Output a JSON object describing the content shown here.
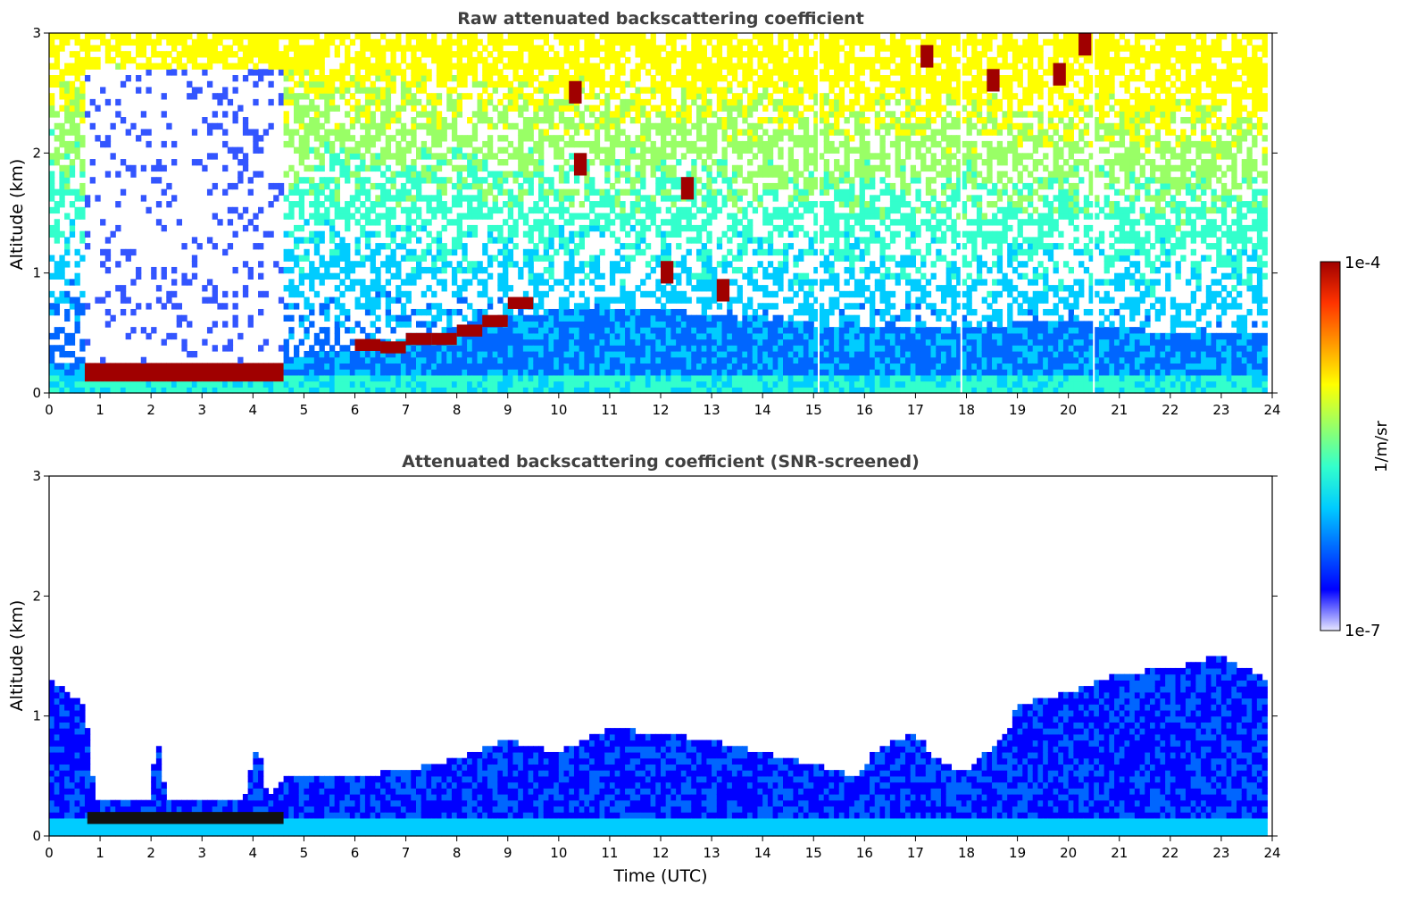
{
  "chart_data": [
    {
      "type": "heatmap",
      "title": "Raw attenuated backscattering coefficient",
      "xlabel": "",
      "ylabel": "Altitude (km)",
      "xlim": [
        0,
        24
      ],
      "ylim": [
        0,
        3
      ],
      "x_ticks": [
        "0",
        "1",
        "2",
        "3",
        "4",
        "5",
        "6",
        "7",
        "8",
        "9",
        "10",
        "11",
        "12",
        "13",
        "14",
        "15",
        "16",
        "17",
        "18",
        "19",
        "20",
        "21",
        "22",
        "23",
        "24"
      ],
      "y_ticks": [
        "0",
        "1",
        "2",
        "3"
      ],
      "screened": false,
      "features": {
        "aerosol_layer_top_km": [
          [
            0,
            0.25
          ],
          [
            4.5,
            0.3
          ],
          [
            6,
            0.35
          ],
          [
            8,
            0.55
          ],
          [
            10,
            0.7
          ],
          [
            12,
            0.7
          ],
          [
            14,
            0.6
          ],
          [
            16,
            0.55
          ],
          [
            18,
            0.55
          ],
          [
            20,
            0.6
          ],
          [
            22,
            0.5
          ],
          [
            24,
            0.5
          ]
        ],
        "fog_layer": {
          "x_range": [
            0.75,
            4.6
          ],
          "bottom_km": 0.08,
          "top_km": 0.25
        },
        "low_clouds": [
          [
            6.0,
            0.4
          ],
          [
            6.5,
            0.38
          ],
          [
            7.0,
            0.45
          ],
          [
            7.5,
            0.45
          ],
          [
            8.0,
            0.52
          ],
          [
            8.5,
            0.6
          ],
          [
            9.0,
            0.75
          ]
        ],
        "cirrus_patches": [
          [
            10.2,
            2.5
          ],
          [
            10.3,
            1.9
          ],
          [
            12.0,
            1.0
          ],
          [
            12.4,
            1.7
          ],
          [
            13.1,
            0.85
          ],
          [
            17.1,
            2.8
          ],
          [
            18.4,
            2.6
          ],
          [
            19.7,
            2.65
          ],
          [
            20.2,
            2.9
          ]
        ]
      },
      "gaps_x": [
        15.1,
        17.9,
        20.5
      ]
    },
    {
      "type": "heatmap",
      "title": "Attenuated backscattering coefficient (SNR-screened)",
      "xlabel": "Time (UTC)",
      "ylabel": "Altitude (km)",
      "xlim": [
        0,
        24
      ],
      "ylim": [
        0,
        3
      ],
      "x_ticks": [
        "0",
        "1",
        "2",
        "3",
        "4",
        "5",
        "6",
        "7",
        "8",
        "9",
        "10",
        "11",
        "12",
        "13",
        "14",
        "15",
        "16",
        "17",
        "18",
        "19",
        "20",
        "21",
        "22",
        "23",
        "24"
      ],
      "y_ticks": [
        "0",
        "1",
        "2",
        "3"
      ],
      "screened": true,
      "signal_top_km": [
        [
          0,
          1.3
        ],
        [
          0.7,
          1.1
        ],
        [
          0.9,
          0.28
        ],
        [
          2.0,
          0.3
        ],
        [
          2.1,
          0.9
        ],
        [
          2.3,
          0.32
        ],
        [
          3.8,
          0.28
        ],
        [
          4.1,
          0.8
        ],
        [
          4.3,
          0.3
        ],
        [
          4.6,
          0.5
        ],
        [
          5,
          0.5
        ],
        [
          6,
          0.5
        ],
        [
          7,
          0.55
        ],
        [
          8,
          0.65
        ],
        [
          9,
          0.8
        ],
        [
          10,
          0.7
        ],
        [
          10.5,
          0.8
        ],
        [
          11,
          0.9
        ],
        [
          12,
          0.85
        ],
        [
          13,
          0.8
        ],
        [
          14,
          0.7
        ],
        [
          15,
          0.6
        ],
        [
          15.8,
          0.5
        ],
        [
          16.3,
          0.75
        ],
        [
          17,
          0.85
        ],
        [
          17.5,
          0.6
        ],
        [
          18,
          0.55
        ],
        [
          18.8,
          0.85
        ],
        [
          19,
          1.1
        ],
        [
          20,
          1.2
        ],
        [
          21,
          1.35
        ],
        [
          22,
          1.4
        ],
        [
          23,
          1.5
        ],
        [
          23.9,
          1.3
        ]
      ]
    }
  ],
  "colorbar": {
    "label": "1/m/sr",
    "max_label": "1e-4",
    "min_label": "1e-7",
    "colormap": "jet",
    "colors": [
      "#e6e6ff",
      "#0000ff",
      "#0066ff",
      "#00ccff",
      "#33ffcc",
      "#99ff66",
      "#ffff00",
      "#ff9900",
      "#ff3300",
      "#a00000"
    ]
  }
}
